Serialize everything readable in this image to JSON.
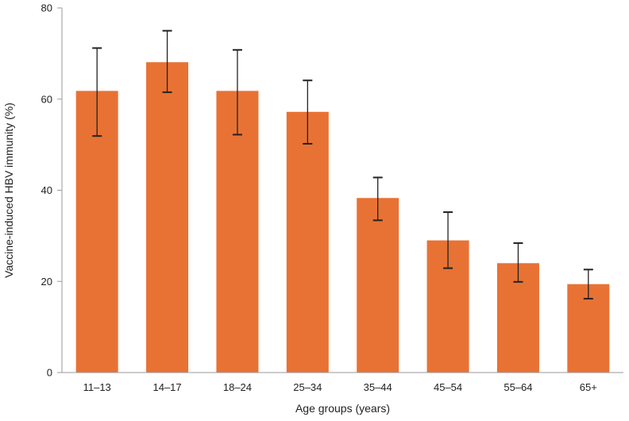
{
  "chart_data": {
    "type": "bar",
    "title": "",
    "xlabel": "Age groups (years)",
    "ylabel": "Vaccine-induced HBV immunity (%)",
    "categories": [
      "11–13",
      "14–17",
      "18–24",
      "25–34",
      "35–44",
      "45–54",
      "55–64",
      "65+"
    ],
    "values": [
      61.8,
      68.1,
      61.8,
      57.2,
      38.3,
      29.0,
      24.0,
      19.4
    ],
    "error_low": [
      51.9,
      61.5,
      52.2,
      50.2,
      33.4,
      22.9,
      19.9,
      16.2
    ],
    "error_high": [
      71.2,
      75.0,
      70.8,
      64.1,
      42.8,
      35.2,
      28.4,
      22.6
    ],
    "ylim": [
      0,
      80
    ],
    "yticks": [
      0,
      20,
      40,
      60,
      80
    ],
    "ytick_labels": [
      "0",
      "20",
      "40",
      "60",
      "80"
    ],
    "grid": false,
    "legend": "none",
    "colors": {
      "bar": "#E87234",
      "error_bar": "#222222",
      "axis": "#9a9a9a",
      "text": "#222222"
    }
  }
}
